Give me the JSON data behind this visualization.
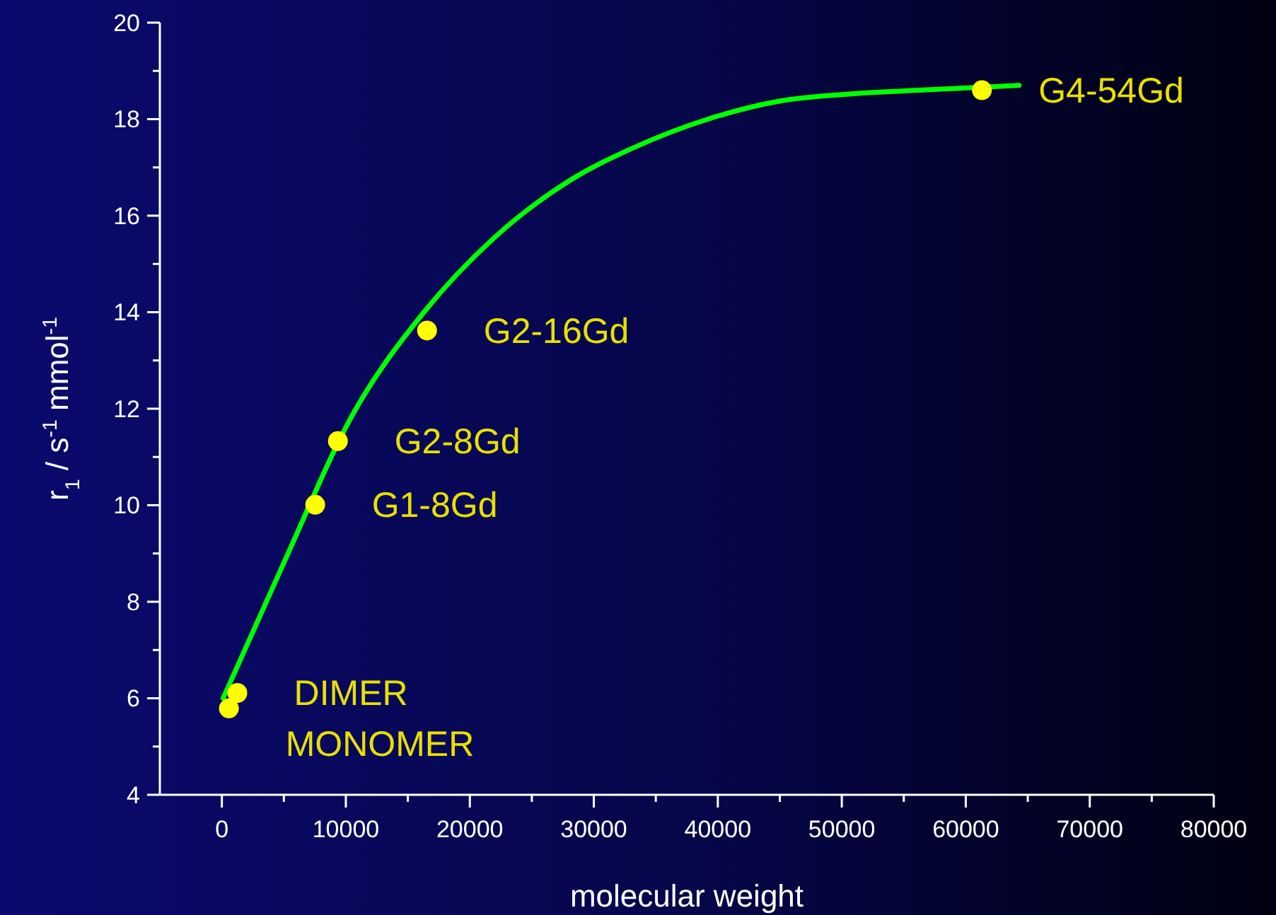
{
  "chart_data": {
    "type": "scatter",
    "xlabel": "molecular weight",
    "ylabel": "r$_{1}$ / s$^{-1}$ mmol$^{-1}$",
    "xlim": [
      -5000,
      80000
    ],
    "xticks": [
      0,
      {
        "value": 5000,
        "label": null
      },
      10000,
      {
        "value": 15000,
        "label": null
      },
      20000,
      {
        "value": 25000,
        "label": null
      },
      30000,
      {
        "value": 35000,
        "label": null
      },
      40000,
      {
        "value": 45000,
        "label": null
      },
      50000,
      {
        "value": 55000,
        "label": null
      },
      60000,
      {
        "value": 65000,
        "label": null
      },
      70000,
      {
        "value": 75000,
        "label": null
      },
      80000
    ],
    "ylim": [
      4,
      20
    ],
    "yticks": [
      4,
      {
        "value": 5,
        "label": null
      },
      6,
      {
        "value": 7,
        "label": null
      },
      8,
      {
        "value": 9,
        "label": null
      },
      10,
      {
        "value": 11,
        "label": null
      },
      12,
      {
        "value": 13,
        "label": null
      },
      14,
      {
        "value": 15,
        "label": null
      },
      16,
      {
        "value": 17,
        "label": null
      },
      18,
      {
        "value": 19,
        "label": null
      },
      20
    ],
    "grid": false,
    "series": [
      {
        "type": "line",
        "color": "#00ff00",
        "marker": "none",
        "line_style": "solid",
        "x": [
          100,
          4900,
          10600,
          16300,
          22000,
          27700,
          33400,
          39200,
          44900,
          50600,
          56300,
          64300
        ],
        "values": [
          6.0,
          8.75,
          11.9,
          14.0,
          15.55,
          16.67,
          17.43,
          18.0,
          18.37,
          18.52,
          18.6,
          18.7
        ]
      },
      {
        "color": "#ffff00",
        "marker": "circle",
        "x": [
          570,
          1250,
          7530,
          9360,
          16550,
          61300
        ],
        "values": [
          5.79,
          6.11,
          10.01,
          11.33,
          13.62,
          18.6
        ]
      }
    ],
    "annotations": [
      {
        "text": "DIMER",
        "x": 1250,
        "y": 6.11
      },
      {
        "text": "MONOMER",
        "x": 570,
        "y": 5.79
      },
      {
        "text": "G1-8Gd",
        "x": 7530,
        "y": 10.01
      },
      {
        "text": "G2-8Gd",
        "x": 9360,
        "y": 11.33
      },
      {
        "text": "G2-16Gd",
        "x": 16550,
        "y": 13.62
      },
      {
        "text": "G4-54Gd",
        "x": 61300,
        "y": 18.6
      }
    ]
  }
}
